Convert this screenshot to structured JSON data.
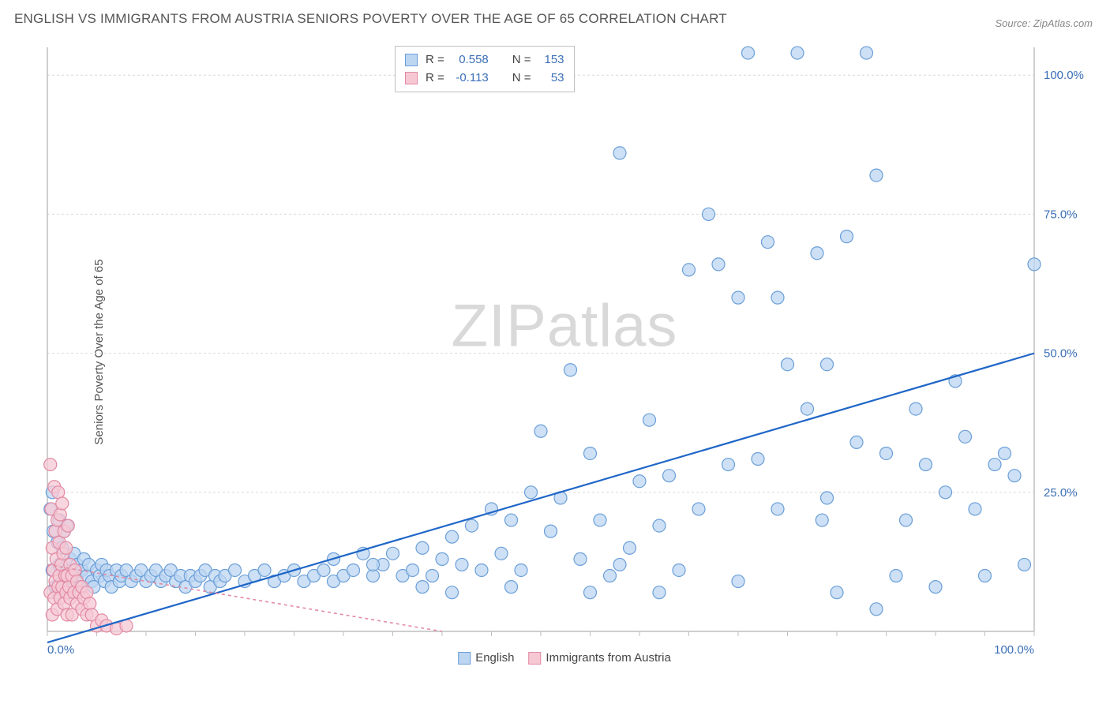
{
  "title": "ENGLISH VS IMMIGRANTS FROM AUSTRIA SENIORS POVERTY OVER THE AGE OF 65 CORRELATION CHART",
  "source": "Source: ZipAtlas.com",
  "ylabel": "Seniors Poverty Over the Age of 65",
  "watermark_zip": "ZIP",
  "watermark_atlas": "atlas",
  "chart": {
    "type": "scatter-with-regression",
    "xlim": [
      0,
      100
    ],
    "ylim": [
      0,
      105
    ],
    "xticks": [
      0,
      100
    ],
    "xtick_labels": [
      "0.0%",
      "100.0%"
    ],
    "yticks": [
      25,
      50,
      75,
      100
    ],
    "ytick_labels": [
      "25.0%",
      "50.0%",
      "75.0%",
      "100.0%"
    ],
    "minor_xtick_step": 5,
    "grid_color": "#d9d9d9",
    "grid_dash": "3,3",
    "axis_color": "#bfbfbf",
    "background_color": "#ffffff",
    "tick_label_color": "#3b6fb6",
    "tick_label_fontsize": 15,
    "marker_radius": 8,
    "marker_stroke_width": 1.2,
    "series": [
      {
        "name": "English",
        "fill": "#bcd6f2",
        "stroke": "#6b9fd8",
        "fill_opacity": 0.75,
        "R": "0.558",
        "N": "153",
        "regression": {
          "x1": 0,
          "y1": -2,
          "x2": 100,
          "y2": 50,
          "color": "#1f66c7",
          "width": 2.2,
          "dash": ""
        },
        "points": [
          [
            0.3,
            22
          ],
          [
            0.5,
            25
          ],
          [
            0.5,
            11
          ],
          [
            0.6,
            18
          ],
          [
            0.8,
            8
          ],
          [
            1,
            7
          ],
          [
            1,
            16
          ],
          [
            1.2,
            20
          ],
          [
            1.2,
            12
          ],
          [
            1.5,
            9
          ],
          [
            1.5,
            15
          ],
          [
            1.7,
            18
          ],
          [
            2,
            11
          ],
          [
            2,
            19
          ],
          [
            2.2,
            7
          ],
          [
            2.3,
            13
          ],
          [
            2.5,
            9
          ],
          [
            2.7,
            14
          ],
          [
            3,
            12
          ],
          [
            3,
            10
          ],
          [
            3.3,
            8
          ],
          [
            3.5,
            11
          ],
          [
            3.7,
            13
          ],
          [
            4,
            10
          ],
          [
            4.2,
            12
          ],
          [
            4.5,
            9
          ],
          [
            4.7,
            8
          ],
          [
            5,
            11
          ],
          [
            5.3,
            10
          ],
          [
            5.5,
            12
          ],
          [
            5.8,
            9
          ],
          [
            6,
            11
          ],
          [
            6.3,
            10
          ],
          [
            6.5,
            8
          ],
          [
            7,
            11
          ],
          [
            7.3,
            9
          ],
          [
            7.5,
            10
          ],
          [
            8,
            11
          ],
          [
            8.5,
            9
          ],
          [
            9,
            10
          ],
          [
            9.5,
            11
          ],
          [
            10,
            9
          ],
          [
            10.5,
            10
          ],
          [
            11,
            11
          ],
          [
            11.5,
            9
          ],
          [
            12,
            10
          ],
          [
            12.5,
            11
          ],
          [
            13,
            9
          ],
          [
            13.5,
            10
          ],
          [
            14,
            8
          ],
          [
            14.5,
            10
          ],
          [
            15,
            9
          ],
          [
            15.5,
            10
          ],
          [
            16,
            11
          ],
          [
            16.5,
            8
          ],
          [
            17,
            10
          ],
          [
            17.5,
            9
          ],
          [
            18,
            10
          ],
          [
            19,
            11
          ],
          [
            20,
            9
          ],
          [
            21,
            10
          ],
          [
            22,
            11
          ],
          [
            23,
            9
          ],
          [
            24,
            10
          ],
          [
            25,
            11
          ],
          [
            26,
            9
          ],
          [
            27,
            10
          ],
          [
            28,
            11
          ],
          [
            29,
            9
          ],
          [
            30,
            10
          ],
          [
            31,
            11
          ],
          [
            32,
            14
          ],
          [
            33,
            10
          ],
          [
            34,
            12
          ],
          [
            35,
            14
          ],
          [
            36,
            10
          ],
          [
            37,
            11
          ],
          [
            38,
            15
          ],
          [
            39,
            10
          ],
          [
            40,
            13
          ],
          [
            41,
            17
          ],
          [
            42,
            12
          ],
          [
            43,
            19
          ],
          [
            44,
            11
          ],
          [
            45,
            22
          ],
          [
            46,
            14
          ],
          [
            47,
            20
          ],
          [
            48,
            11
          ],
          [
            49,
            25
          ],
          [
            50,
            36
          ],
          [
            51,
            18
          ],
          [
            52,
            24
          ],
          [
            53,
            47
          ],
          [
            54,
            13
          ],
          [
            55,
            32
          ],
          [
            56,
            20
          ],
          [
            57,
            10
          ],
          [
            58,
            86
          ],
          [
            59,
            15
          ],
          [
            60,
            27
          ],
          [
            61,
            38
          ],
          [
            62,
            19
          ],
          [
            63,
            28
          ],
          [
            64,
            11
          ],
          [
            65,
            65
          ],
          [
            66,
            22
          ],
          [
            67,
            75
          ],
          [
            68,
            66
          ],
          [
            69,
            30
          ],
          [
            70,
            60
          ],
          [
            71,
            104
          ],
          [
            72,
            31
          ],
          [
            73,
            70
          ],
          [
            74,
            60
          ],
          [
            75,
            48
          ],
          [
            76,
            104
          ],
          [
            77,
            40
          ],
          [
            78,
            68
          ],
          [
            78.5,
            20
          ],
          [
            79,
            48
          ],
          [
            80,
            7
          ],
          [
            81,
            71
          ],
          [
            82,
            34
          ],
          [
            83,
            104
          ],
          [
            84,
            82
          ],
          [
            85,
            32
          ],
          [
            86,
            10
          ],
          [
            87,
            20
          ],
          [
            88,
            40
          ],
          [
            89,
            30
          ],
          [
            90,
            8
          ],
          [
            91,
            25
          ],
          [
            92,
            45
          ],
          [
            93,
            35
          ],
          [
            94,
            22
          ],
          [
            95,
            10
          ],
          [
            96,
            30
          ],
          [
            97,
            32
          ],
          [
            98,
            28
          ],
          [
            99,
            12
          ],
          [
            100,
            66
          ],
          [
            84,
            4
          ],
          [
            62,
            7
          ],
          [
            55,
            7
          ],
          [
            47,
            8
          ],
          [
            70,
            9
          ],
          [
            74,
            22
          ],
          [
            79,
            24
          ],
          [
            58,
            12
          ],
          [
            38,
            8
          ],
          [
            41,
            7
          ],
          [
            33,
            12
          ],
          [
            29,
            13
          ]
        ]
      },
      {
        "name": "Immigrants from Austria",
        "fill": "#f6c8d4",
        "stroke": "#e28aa3",
        "fill_opacity": 0.75,
        "R": "-0.113",
        "N": "53",
        "regression": {
          "x1": 0,
          "y1": 12,
          "x2": 40,
          "y2": 0,
          "color": "#e28aa3",
          "width": 1.6,
          "dash": "4,4"
        },
        "points": [
          [
            0.3,
            7
          ],
          [
            0.3,
            30
          ],
          [
            0.4,
            22
          ],
          [
            0.5,
            15
          ],
          [
            0.5,
            3
          ],
          [
            0.6,
            11
          ],
          [
            0.7,
            26
          ],
          [
            0.7,
            6
          ],
          [
            0.8,
            18
          ],
          [
            0.8,
            9
          ],
          [
            0.9,
            13
          ],
          [
            1,
            20
          ],
          [
            1,
            4
          ],
          [
            1.1,
            8
          ],
          [
            1.1,
            25
          ],
          [
            1.2,
            10
          ],
          [
            1.2,
            16
          ],
          [
            1.3,
            6
          ],
          [
            1.3,
            21
          ],
          [
            1.4,
            12
          ],
          [
            1.5,
            8
          ],
          [
            1.5,
            23
          ],
          [
            1.6,
            14
          ],
          [
            1.7,
            5
          ],
          [
            1.7,
            18
          ],
          [
            1.8,
            10
          ],
          [
            1.9,
            7
          ],
          [
            1.9,
            15
          ],
          [
            2,
            10
          ],
          [
            2,
            3
          ],
          [
            2.1,
            19
          ],
          [
            2.2,
            8
          ],
          [
            2.3,
            12
          ],
          [
            2.3,
            6
          ],
          [
            2.5,
            10
          ],
          [
            2.5,
            3
          ],
          [
            2.7,
            7
          ],
          [
            2.8,
            11
          ],
          [
            3,
            5
          ],
          [
            3,
            9
          ],
          [
            3.2,
            7
          ],
          [
            3.5,
            4
          ],
          [
            3.5,
            8
          ],
          [
            3.7,
            6
          ],
          [
            4,
            3
          ],
          [
            4,
            7
          ],
          [
            4.3,
            5
          ],
          [
            4.5,
            3
          ],
          [
            5,
            1
          ],
          [
            5.5,
            2
          ],
          [
            6,
            1
          ],
          [
            7,
            0.5
          ],
          [
            8,
            1
          ]
        ]
      }
    ]
  },
  "legend_top_rows": [
    {
      "swatch_fill": "#bcd6f2",
      "swatch_stroke": "#6b9fd8",
      "r_label": "R =",
      "r_val": "0.558",
      "n_label": "N =",
      "n_val": "153"
    },
    {
      "swatch_fill": "#f6c8d4",
      "swatch_stroke": "#e28aa3",
      "r_label": "R =",
      "r_val": "-0.113",
      "n_label": "N =",
      "n_val": "53"
    }
  ],
  "legend_bottom": [
    {
      "swatch_fill": "#bcd6f2",
      "swatch_stroke": "#6b9fd8",
      "label": "English"
    },
    {
      "swatch_fill": "#f6c8d4",
      "swatch_stroke": "#e28aa3",
      "label": "Immigrants from Austria"
    }
  ]
}
